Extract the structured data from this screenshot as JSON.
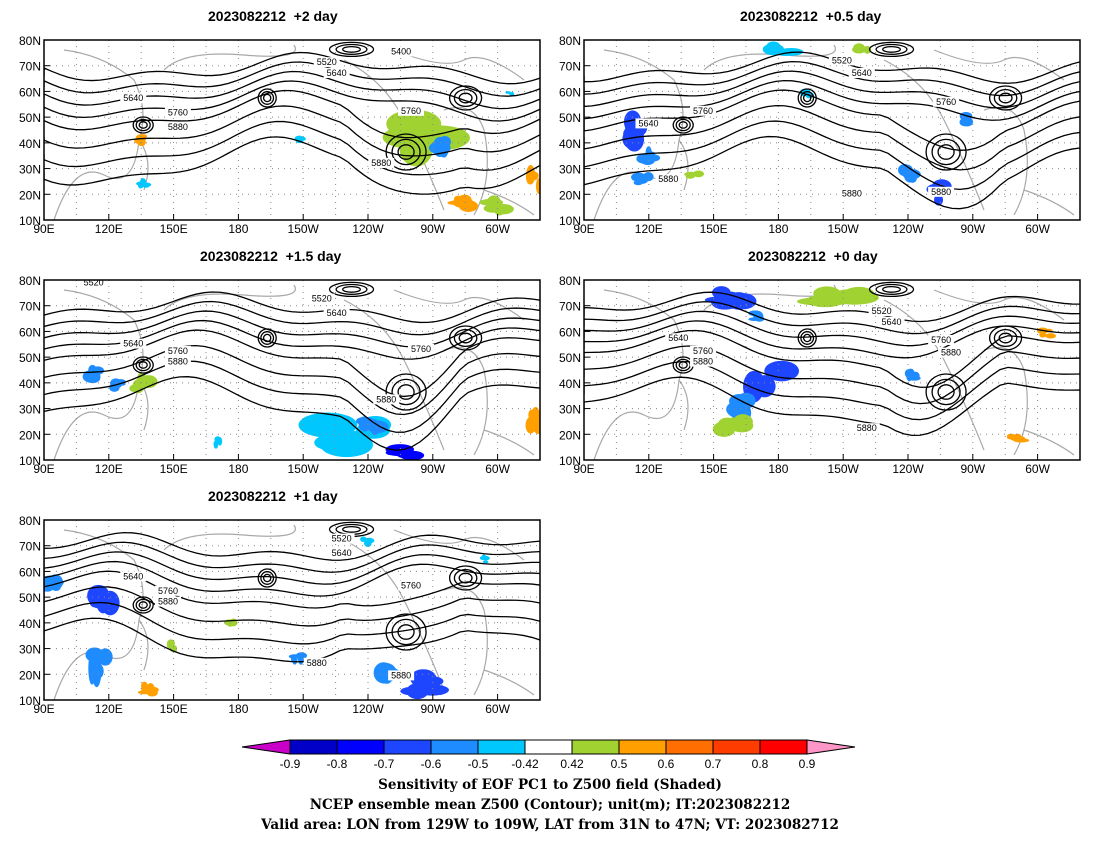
{
  "panels": [
    {
      "id": "p1",
      "title": "2023082212  +2 day"
    },
    {
      "id": "p2",
      "title": "2023082212  +0.5 day"
    },
    {
      "id": "p3",
      "title": "2023082212  +1.5 day"
    },
    {
      "id": "p4",
      "title": "2023082212  +0 day"
    },
    {
      "id": "p5",
      "title": "2023082212  +1 day"
    }
  ],
  "axes": {
    "lat_labels": [
      "80N",
      "70N",
      "60N",
      "50N",
      "40N",
      "30N",
      "20N",
      "10N"
    ],
    "lon_labels": [
      "90E",
      "120E",
      "150E",
      "180",
      "150W",
      "120W",
      "90W",
      "60W"
    ]
  },
  "contour_labels": {
    "p1": [
      "5400",
      "5520",
      "5640",
      "5640",
      "5760",
      "5880",
      "5760",
      "5880"
    ],
    "p2": [
      "5520",
      "5640",
      "5640",
      "5760",
      "5760",
      "5880",
      "5880",
      "5880"
    ],
    "p3": [
      "5520",
      "5520",
      "5640",
      "5640",
      "5760",
      "5880",
      "5760",
      "5880"
    ],
    "p4": [
      "5520",
      "5640",
      "5640",
      "5760",
      "5880",
      "5760",
      "5880",
      "5880"
    ],
    "p5": [
      "5520",
      "5640",
      "5640",
      "5760",
      "5880",
      "5760",
      "5880",
      "5880"
    ]
  },
  "colorbar": {
    "levels": [
      "-0.9",
      "-0.8",
      "-0.7",
      "-0.6",
      "-0.5",
      "-0.42",
      "0.42",
      "0.5",
      "0.6",
      "0.7",
      "0.8",
      "0.9"
    ],
    "colors": [
      "#c800c8",
      "#0000c8",
      "#0000ff",
      "#1e46ff",
      "#1e8cff",
      "#00c8ff",
      "#ffffff",
      "#a0d232",
      "#ffa000",
      "#ff6e00",
      "#ff3c00",
      "#ff0000",
      "#ff96c8"
    ]
  },
  "caption": {
    "line1": "Sensitivity of EOF PC1 to Z500 field (Shaded)",
    "line2": "NCEP ensemble mean Z500 (Contour); unit(m); IT:2023082212",
    "line3": "Valid area: LON from 129W to 109W, LAT from 31N to 47N; VT: 2023082712"
  }
}
